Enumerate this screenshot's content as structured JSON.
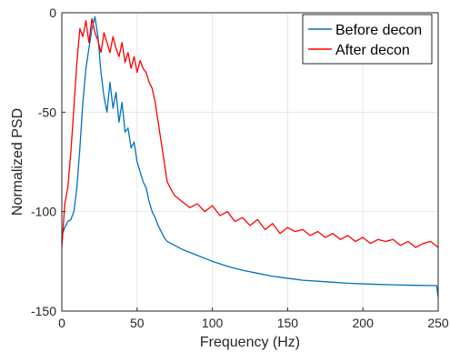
{
  "chart_data": {
    "type": "line",
    "title": "",
    "xlabel": "Frequency (Hz)",
    "ylabel": "Normalized PSD",
    "xlim": [
      0,
      250
    ],
    "ylim": [
      -150,
      0
    ],
    "x_ticks": [
      0,
      50,
      100,
      150,
      200,
      250
    ],
    "y_ticks": [
      -150,
      -100,
      -50,
      0
    ],
    "grid": true,
    "legend_position": "top-right",
    "series": [
      {
        "name": "Before decon",
        "color": "#0072BD",
        "x": [
          0,
          2,
          4,
          6,
          8,
          10,
          12,
          14,
          16,
          18,
          20,
          22,
          24,
          26,
          28,
          30,
          32,
          34,
          36,
          38,
          40,
          42,
          44,
          46,
          48,
          50,
          52,
          54,
          56,
          58,
          60,
          62,
          64,
          66,
          68,
          70,
          75,
          80,
          85,
          90,
          100,
          110,
          120,
          130,
          140,
          150,
          160,
          170,
          180,
          190,
          200,
          210,
          220,
          230,
          240,
          249,
          250
        ],
        "y": [
          -112,
          -108,
          -105,
          -104,
          -100,
          -88,
          -68,
          -45,
          -28,
          -18,
          -8,
          -2,
          -12,
          -30,
          -42,
          -50,
          -35,
          -48,
          -40,
          -55,
          -45,
          -60,
          -58,
          -68,
          -65,
          -75,
          -80,
          -85,
          -88,
          -95,
          -100,
          -103,
          -107,
          -110,
          -113,
          -115,
          -117,
          -119,
          -120.5,
          -122,
          -125,
          -127.5,
          -129.5,
          -131,
          -132.5,
          -133.5,
          -134.5,
          -135,
          -135.5,
          -136,
          -136.3,
          -136.6,
          -136.8,
          -137,
          -137.1,
          -137.2,
          -143
        ]
      },
      {
        "name": "After decon",
        "color": "#FF0000",
        "x": [
          0,
          2,
          4,
          6,
          8,
          10,
          12,
          14,
          16,
          18,
          20,
          22,
          24,
          26,
          28,
          30,
          32,
          34,
          36,
          38,
          40,
          42,
          44,
          46,
          48,
          50,
          52,
          54,
          56,
          58,
          60,
          62,
          64,
          66,
          68,
          70,
          72,
          75,
          80,
          85,
          90,
          95,
          100,
          105,
          110,
          115,
          120,
          125,
          130,
          135,
          140,
          145,
          150,
          155,
          160,
          165,
          170,
          175,
          180,
          185,
          190,
          195,
          200,
          205,
          210,
          215,
          220,
          225,
          230,
          235,
          240,
          245,
          250
        ],
        "y": [
          -118,
          -96,
          -88,
          -70,
          -48,
          -25,
          -8,
          -12,
          -4,
          -15,
          -3,
          -10,
          -14,
          -20,
          -10,
          -15,
          -20,
          -12,
          -18,
          -22,
          -15,
          -25,
          -20,
          -28,
          -22,
          -30,
          -24,
          -28,
          -30,
          -35,
          -38,
          -45,
          -55,
          -65,
          -75,
          -85,
          -88,
          -92,
          -95,
          -98,
          -96,
          -100,
          -97,
          -102,
          -100,
          -105,
          -103,
          -107,
          -104,
          -109,
          -106,
          -111,
          -108,
          -110,
          -109,
          -112,
          -110,
          -113,
          -111,
          -114,
          -112,
          -115,
          -113,
          -116,
          -114,
          -115,
          -114,
          -117,
          -115,
          -118,
          -116,
          -115,
          -118
        ]
      }
    ]
  }
}
